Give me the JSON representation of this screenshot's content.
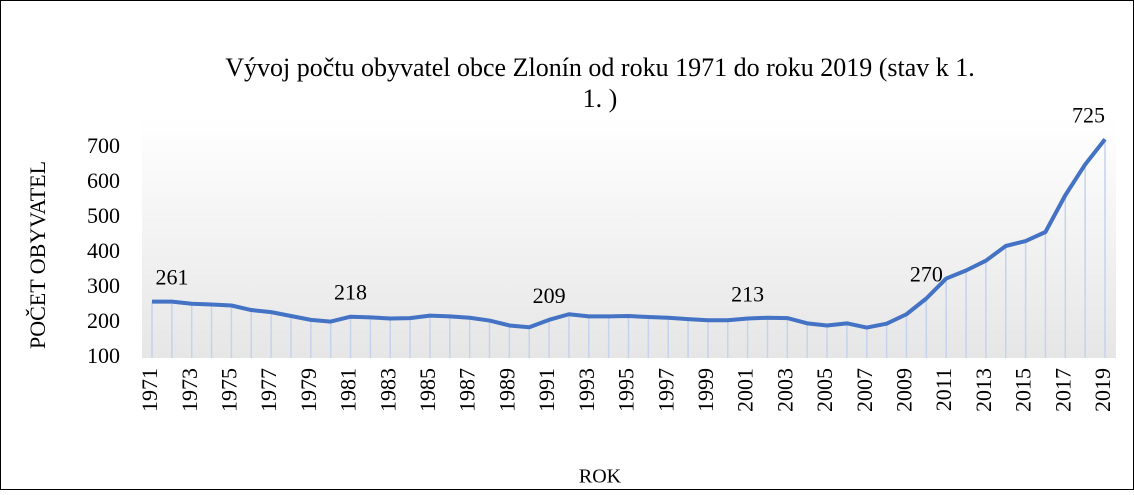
{
  "chart_data": {
    "type": "line",
    "title": "Vývoj počtu obyvatel obce Zlonín od roku 1971 do roku 2019 (stav k 1. 1. )",
    "x_label": "ROK",
    "y_label": "POČET OBYVATEL",
    "categories": [
      "1971",
      null,
      "1973",
      null,
      "1975",
      null,
      "1977",
      null,
      "1979",
      null,
      "1981",
      null,
      "1983",
      null,
      "1985",
      null,
      "1987",
      null,
      "1989",
      null,
      "1991",
      null,
      "1993",
      null,
      "1995",
      null,
      "1997",
      null,
      "1999",
      null,
      "2001",
      null,
      "2003",
      null,
      "2005",
      null,
      "2007",
      null,
      "2009",
      null,
      "2011",
      null,
      "2013",
      null,
      "2015",
      null,
      "2017",
      null,
      "2019"
    ],
    "series": [
      {
        "name": "Počet obyvatel",
        "color": "#4472c4",
        "values": [
          261,
          261,
          255,
          253,
          250,
          237,
          231,
          220,
          209,
          204,
          218,
          216,
          213,
          214,
          221,
          219,
          215,
          207,
          193,
          188,
          209,
          225,
          219,
          219,
          220,
          217,
          215,
          211,
          208,
          208,
          213,
          215,
          214,
          199,
          193,
          199,
          187,
          198,
          225,
          270,
          327,
          350,
          378,
          420,
          434,
          460,
          565,
          653,
          725
        ],
        "value_labels": [
          "261",
          null,
          null,
          null,
          null,
          null,
          null,
          null,
          null,
          null,
          "218",
          null,
          null,
          null,
          null,
          null,
          null,
          null,
          null,
          null,
          "209",
          null,
          null,
          null,
          null,
          null,
          null,
          null,
          null,
          null,
          "213",
          null,
          null,
          null,
          null,
          null,
          null,
          null,
          null,
          "270",
          null,
          null,
          null,
          null,
          null,
          null,
          null,
          null,
          "725"
        ]
      }
    ],
    "ylim": [
      100,
      800
    ],
    "yticks": [
      100,
      200,
      300,
      400,
      500,
      600,
      700
    ],
    "grid": false
  }
}
